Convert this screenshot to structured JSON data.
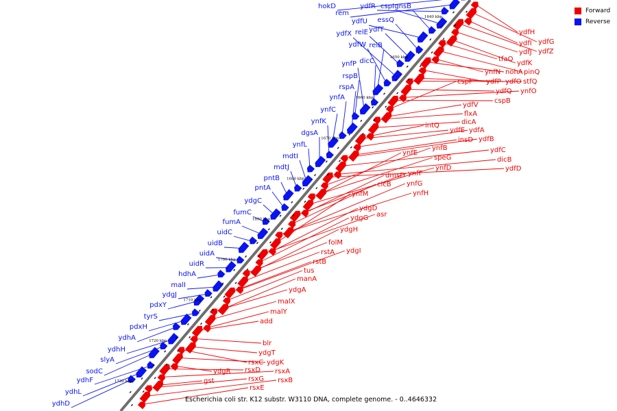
{
  "caption": "Escherichia coli str. K12 substr. W3110 DNA, complete genome. - 0..4646332",
  "legend": {
    "forward_label": "Forward",
    "reverse_label": "Reverse",
    "forward_color": "#ee0000",
    "reverse_color": "#0a14ee"
  },
  "scale_labels": [
    "1640 kbp",
    "1650 kbp",
    "1660 kbp",
    "1670 kbp",
    "1680 kbp",
    "1690 kbp",
    "1700 kbp",
    "1710 kbp",
    "1720 kbp",
    "1730 kbp"
  ],
  "reverse_genes": [
    "hokD",
    "rem",
    "ydfR",
    "cspI",
    "gnsB",
    "ydfU",
    "essQ",
    "ydfT",
    "relE",
    "ydfX",
    "ydfW",
    "relB",
    "dicC",
    "ynfP",
    "rspB",
    "rspA",
    "ynfA",
    "ynfC",
    "ynfK",
    "dgsA",
    "ynfL",
    "mdtI",
    "mdtJ",
    "pntB",
    "pntA",
    "ydgC",
    "fumC",
    "fumA",
    "uidC",
    "uidB",
    "uidA",
    "uidR",
    "hdhA",
    "malI",
    "ydgJ",
    "pdxY",
    "tyrS",
    "pdxH",
    "ydhA",
    "ydhH",
    "slyA",
    "sodC",
    "ydhF",
    "ydhL",
    "ydhD"
  ],
  "forward_genes": [
    "ydfH",
    "ydfG",
    "ydfI",
    "ydfZ",
    "ydfJ",
    "ydfK",
    "tfaQ",
    "pinQ",
    "ynfN",
    "nohA",
    "ydfP",
    "ydfO",
    "stfQ",
    "ydfQ",
    "ynfO",
    "cspB",
    "cspF",
    "ydfV",
    "flxA",
    "dicA",
    "intQ",
    "ydfE",
    "ydfA",
    "insD",
    "ydfB",
    "ydfC",
    "dicB",
    "ydfD",
    "ynfB",
    "ynfE",
    "speG",
    "ynfD",
    "dmsD",
    "ynfF",
    "clcB",
    "ynfG",
    "ynfH",
    "ynfM",
    "ydgD",
    "asr",
    "ydgG",
    "ydgH",
    "folM",
    "rstA",
    "ydgI",
    "rstB",
    "tus",
    "manA",
    "ydgA",
    "malX",
    "malY",
    "add",
    "blr",
    "ydgT",
    "rsxC",
    "ydgK",
    "ydgR",
    "rsxD",
    "rsxA",
    "gst",
    "rsxG",
    "rsxB",
    "rsxE"
  ]
}
